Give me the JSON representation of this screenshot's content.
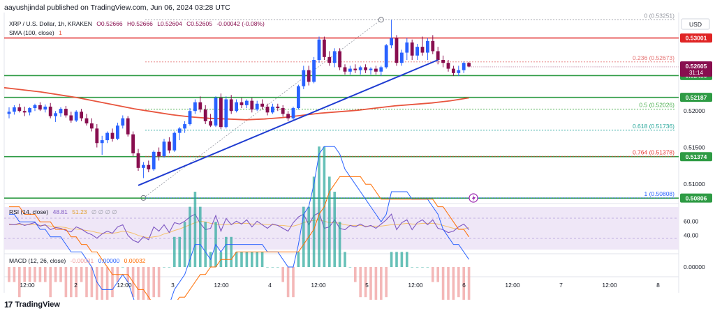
{
  "header": {
    "publisher": "aayushjindal published on TradingView.com, Jun 06, 2024 03:28 UTC"
  },
  "legend": {
    "symbol": "XRP / U.S. Dollar, 1h, KRAKEN",
    "o": "O0.52666",
    "h": "H0.52666",
    "l": "L0.52604",
    "c": "C0.52605",
    "chg": "-0.00042 (-0.08%)",
    "sma_label": "SMA (100, close)",
    "sma_val": "1",
    "rsi_label": "RSI (14, close)",
    "rsi_val": "48.81",
    "rsi_ma": "51.23",
    "rsi_na": "∅ ∅ ∅ ∅",
    "macd_label": "MACD (12, 26, close)",
    "macd_hist": "-0.00031",
    "macd_line": "0.00000",
    "macd_signal": "0.00032"
  },
  "currency": "USD",
  "footer": {
    "logo_text": "TradingView",
    "logo_mark": "17"
  },
  "colors": {
    "up": "#2962ff",
    "down": "#880e4f",
    "sma": "#e8553e",
    "support": "#2e9b44",
    "resistance": "#e02424",
    "trend": "#1e3bd1",
    "rsi": "#7e57c2",
    "rsi_band": "#efe7f7",
    "rsi_ma": "#f5c16c",
    "macd": "#2962ff",
    "signal": "#ff6d00",
    "price_badge": "#880e4f"
  },
  "time_axis": {
    "labels": [
      "12:00",
      "2",
      "12:00",
      "3",
      "12:00",
      "4",
      "12:00",
      "5",
      "12:00",
      "6",
      "12:00",
      "7",
      "12:00",
      "8"
    ]
  },
  "chart_data": {
    "type": "candlestick",
    "title": "XRP / U.S. Dollar, 1h, KRAKEN",
    "ylim": [
      0.5075,
      0.5335
    ],
    "price_ticks": [
      0.51,
      0.515,
      0.52
    ],
    "current_price": {
      "label": "0.52605",
      "countdown": "31:14",
      "value": 0.52605
    },
    "levels": [
      {
        "value": 0.53001,
        "label": "0.53001",
        "kind": "resistance"
      },
      {
        "value": 0.52486,
        "label": "0.52486",
        "kind": "support"
      },
      {
        "value": 0.52187,
        "label": "0.52187",
        "kind": "support"
      },
      {
        "value": 0.51374,
        "label": "0.51374",
        "kind": "support"
      },
      {
        "value": 0.50806,
        "label": "0.50806",
        "kind": "support"
      }
    ],
    "fib_levels": [
      {
        "ratio": "0",
        "value": 0.53251,
        "label": "0 (0.53251)"
      },
      {
        "ratio": "0.236",
        "value": 0.52673,
        "label": "0.236 (0.52673)"
      },
      {
        "ratio": "0.5",
        "value": 0.52026,
        "label": "0.5 (0.52026)"
      },
      {
        "ratio": "0.618",
        "value": 0.51736,
        "label": "0.618 (0.51736)"
      },
      {
        "ratio": "0.764",
        "value": 0.51378,
        "label": "0.764 (0.51378)"
      },
      {
        "ratio": "1",
        "value": 0.50808,
        "label": "1 (0.50808)"
      }
    ],
    "candles": [
      [
        0.5196,
        0.5205,
        0.519,
        0.5199
      ],
      [
        0.5199,
        0.5208,
        0.5195,
        0.5205
      ],
      [
        0.5205,
        0.521,
        0.5198,
        0.52
      ],
      [
        0.52,
        0.5206,
        0.5193,
        0.5198
      ],
      [
        0.5198,
        0.5205,
        0.5194,
        0.5204
      ],
      [
        0.5204,
        0.521,
        0.52,
        0.5208
      ],
      [
        0.5208,
        0.5212,
        0.52,
        0.5202
      ],
      [
        0.5202,
        0.5209,
        0.5198,
        0.5206
      ],
      [
        0.5206,
        0.5211,
        0.519,
        0.5193
      ],
      [
        0.5193,
        0.52,
        0.5185,
        0.5197
      ],
      [
        0.5197,
        0.5205,
        0.5192,
        0.5203
      ],
      [
        0.5203,
        0.5207,
        0.5191,
        0.5194
      ],
      [
        0.5194,
        0.5199,
        0.5184,
        0.5187
      ],
      [
        0.5187,
        0.5201,
        0.5185,
        0.5199
      ],
      [
        0.5199,
        0.5203,
        0.5186,
        0.519
      ],
      [
        0.519,
        0.5196,
        0.518,
        0.5183
      ],
      [
        0.5183,
        0.519,
        0.5172,
        0.5176
      ],
      [
        0.5176,
        0.5182,
        0.515,
        0.5156
      ],
      [
        0.5156,
        0.5166,
        0.514,
        0.516
      ],
      [
        0.516,
        0.5172,
        0.5156,
        0.517
      ],
      [
        0.517,
        0.5176,
        0.5158,
        0.5162
      ],
      [
        0.5162,
        0.5184,
        0.516,
        0.518
      ],
      [
        0.518,
        0.5194,
        0.5176,
        0.519
      ],
      [
        0.519,
        0.5193,
        0.5165,
        0.5168
      ],
      [
        0.5168,
        0.5172,
        0.5138,
        0.5142
      ],
      [
        0.5142,
        0.5148,
        0.5118,
        0.5122
      ],
      [
        0.5122,
        0.513,
        0.5108,
        0.5126
      ],
      [
        0.5126,
        0.5132,
        0.5116,
        0.512
      ],
      [
        0.512,
        0.5146,
        0.5118,
        0.5144
      ],
      [
        0.5144,
        0.515,
        0.5132,
        0.5138
      ],
      [
        0.5138,
        0.5162,
        0.5136,
        0.5158
      ],
      [
        0.5158,
        0.5164,
        0.5142,
        0.5146
      ],
      [
        0.5146,
        0.5172,
        0.5144,
        0.517
      ],
      [
        0.517,
        0.5178,
        0.516,
        0.5176
      ],
      [
        0.5176,
        0.5186,
        0.517,
        0.5182
      ],
      [
        0.5182,
        0.5204,
        0.518,
        0.52
      ],
      [
        0.52,
        0.5216,
        0.5196,
        0.5212
      ],
      [
        0.5212,
        0.522,
        0.5198,
        0.5202
      ],
      [
        0.5202,
        0.5208,
        0.5182,
        0.5186
      ],
      [
        0.5186,
        0.5196,
        0.5178,
        0.518
      ],
      [
        0.518,
        0.522,
        0.5178,
        0.5218
      ],
      [
        0.5218,
        0.5224,
        0.5175,
        0.5178
      ],
      [
        0.5178,
        0.522,
        0.5176,
        0.5216
      ],
      [
        0.5216,
        0.5222,
        0.5196,
        0.52
      ],
      [
        0.52,
        0.5216,
        0.5198,
        0.5212
      ],
      [
        0.5212,
        0.5218,
        0.5204,
        0.5208
      ],
      [
        0.5208,
        0.5216,
        0.5204,
        0.5214
      ],
      [
        0.5214,
        0.5218,
        0.5198,
        0.5202
      ],
      [
        0.5202,
        0.5214,
        0.52,
        0.521
      ],
      [
        0.521,
        0.5216,
        0.5202,
        0.5206
      ],
      [
        0.5206,
        0.521,
        0.5194,
        0.5198
      ],
      [
        0.5198,
        0.521,
        0.5196,
        0.5206
      ],
      [
        0.5206,
        0.521,
        0.52,
        0.5204
      ],
      [
        0.5204,
        0.5208,
        0.5192,
        0.5196
      ],
      [
        0.5196,
        0.52,
        0.5186,
        0.519
      ],
      [
        0.519,
        0.5206,
        0.5188,
        0.5204
      ],
      [
        0.5204,
        0.5236,
        0.5202,
        0.5234
      ],
      [
        0.5234,
        0.5262,
        0.523,
        0.5256
      ],
      [
        0.5256,
        0.5262,
        0.5235,
        0.524
      ],
      [
        0.524,
        0.5274,
        0.5238,
        0.527
      ],
      [
        0.527,
        0.5302,
        0.5266,
        0.5298
      ],
      [
        0.5298,
        0.5302,
        0.527,
        0.5274
      ],
      [
        0.5274,
        0.5282,
        0.5262,
        0.5266
      ],
      [
        0.5266,
        0.5286,
        0.526,
        0.5282
      ],
      [
        0.5282,
        0.5286,
        0.5256,
        0.526
      ],
      [
        0.526,
        0.5264,
        0.525,
        0.5254
      ],
      [
        0.5254,
        0.5262,
        0.525,
        0.5258
      ],
      [
        0.5258,
        0.5264,
        0.5252,
        0.5256
      ],
      [
        0.5256,
        0.5262,
        0.525,
        0.526
      ],
      [
        0.526,
        0.5264,
        0.5252,
        0.5256
      ],
      [
        0.5256,
        0.526,
        0.525,
        0.5258
      ],
      [
        0.5258,
        0.5262,
        0.525,
        0.5254
      ],
      [
        0.5254,
        0.5262,
        0.5248,
        0.526
      ],
      [
        0.526,
        0.5292,
        0.5258,
        0.529
      ],
      [
        0.529,
        0.5325,
        0.5286,
        0.53
      ],
      [
        0.53,
        0.5304,
        0.5262,
        0.5266
      ],
      [
        0.5266,
        0.5284,
        0.5262,
        0.528
      ],
      [
        0.528,
        0.53,
        0.527,
        0.5294
      ],
      [
        0.5294,
        0.5298,
        0.527,
        0.5276
      ],
      [
        0.5276,
        0.5292,
        0.527,
        0.5288
      ],
      [
        0.5288,
        0.5302,
        0.5276,
        0.528
      ],
      [
        0.528,
        0.53,
        0.527,
        0.5296
      ],
      [
        0.5296,
        0.5304,
        0.5278,
        0.5282
      ],
      [
        0.5282,
        0.5288,
        0.5264,
        0.527
      ],
      [
        0.527,
        0.5276,
        0.526,
        0.5266
      ],
      [
        0.5266,
        0.527,
        0.5254,
        0.5258
      ],
      [
        0.5258,
        0.5262,
        0.5248,
        0.5252
      ],
      [
        0.5252,
        0.5262,
        0.5248,
        0.5256
      ],
      [
        0.5256,
        0.5268,
        0.5252,
        0.5266
      ],
      [
        0.5266,
        0.5267,
        0.526,
        0.5261
      ]
    ],
    "sma": [
      0.5232,
      0.5229,
      0.5226,
      0.5222,
      0.5218,
      0.5213,
      0.5208,
      0.5203,
      0.5199,
      0.5195,
      0.5192,
      0.519,
      0.5189,
      0.5188,
      0.5189,
      0.5191,
      0.5194,
      0.5197,
      0.5199,
      0.5201,
      0.5204,
      0.5207,
      0.5209,
      0.5211,
      0.5214,
      0.5218
    ],
    "rsi_ticks": [
      40,
      60
    ],
    "rsi": [
      56,
      55,
      57,
      54,
      56,
      58,
      53,
      55,
      48,
      51,
      50,
      47,
      45,
      52,
      49,
      44,
      41,
      36,
      42,
      46,
      43,
      52,
      55,
      40,
      33,
      30,
      38,
      34,
      52,
      46,
      55,
      44,
      58,
      56,
      60,
      66,
      70,
      57,
      48,
      50,
      68,
      46,
      64,
      55,
      60,
      56,
      62,
      52,
      60,
      55,
      50,
      56,
      54,
      50,
      46,
      58,
      66,
      70,
      55,
      68,
      72,
      50,
      52,
      62,
      50,
      48,
      54,
      52,
      56,
      52,
      54,
      50,
      56,
      62,
      70,
      48,
      58,
      62,
      48,
      58,
      62,
      55,
      62,
      50,
      48,
      44,
      46,
      52,
      56,
      48
    ],
    "rsi_ma": [
      55,
      55,
      55,
      55,
      55,
      55,
      54,
      54,
      53,
      52,
      52,
      51,
      49,
      49,
      48,
      47,
      46,
      44,
      43,
      43,
      43,
      44,
      46,
      45,
      43,
      40,
      38,
      37,
      38,
      39,
      42,
      44,
      47,
      49,
      52,
      55,
      58,
      60,
      59,
      57,
      56,
      55,
      55,
      56,
      57,
      57,
      57,
      56,
      56,
      56,
      55,
      55,
      54,
      54,
      53,
      53,
      55,
      58,
      60,
      61,
      62,
      60,
      58,
      58,
      57,
      55,
      54,
      54,
      54,
      53,
      53,
      53,
      53,
      54,
      55,
      55,
      56,
      57,
      56,
      56,
      57,
      57,
      57,
      56,
      54,
      52,
      50,
      49,
      49,
      51
    ],
    "macd_ticks": [
      0.0
    ],
    "macd": [
      0.0007,
      0.0007,
      0.0006,
      0.0006,
      0.0006,
      0.0006,
      0.0005,
      0.0005,
      0.0004,
      0.0004,
      0.0004,
      0.0003,
      0.0002,
      0.0002,
      0.0002,
      0.0001,
      0.0,
      -0.0002,
      -0.0003,
      -0.0003,
      -0.0003,
      -0.0002,
      -0.0001,
      -0.0002,
      -0.0004,
      -0.0006,
      -0.0007,
      -0.0008,
      -0.0007,
      -0.0007,
      -0.0005,
      -0.0005,
      -0.0003,
      -0.0002,
      -0.0001,
      0.0001,
      0.0003,
      0.0003,
      0.0002,
      0.0001,
      0.0003,
      0.0002,
      0.0003,
      0.0003,
      0.0003,
      0.0003,
      0.0003,
      0.0003,
      0.0003,
      0.0003,
      0.0002,
      0.0002,
      0.0002,
      0.0001,
      0.0,
      0.0,
      0.0003,
      0.0007,
      0.0008,
      0.0011,
      0.0015,
      0.0016,
      0.0016,
      0.0016,
      0.0015,
      0.0013,
      0.0012,
      0.0011,
      0.001,
      0.0009,
      0.0008,
      0.0007,
      0.0006,
      0.0007,
      0.001,
      0.001,
      0.001,
      0.001,
      0.0009,
      0.0009,
      0.0009,
      0.0009,
      0.0008,
      0.0007,
      0.0005,
      0.0004,
      0.0003,
      0.0003,
      0.0002,
      0.0001
    ],
    "macd_signal": [
      0.0008,
      0.0008,
      0.0008,
      0.0007,
      0.0007,
      0.0007,
      0.0006,
      0.0006,
      0.0006,
      0.0005,
      0.0005,
      0.0005,
      0.0004,
      0.0004,
      0.0003,
      0.0003,
      0.0002,
      0.0002,
      0.0001,
      0.0,
      -0.0001,
      -0.0001,
      -0.0001,
      -0.0001,
      -0.0002,
      -0.0003,
      -0.0003,
      -0.0004,
      -0.0005,
      -0.0005,
      -0.0005,
      -0.0005,
      -0.0005,
      -0.0004,
      -0.0004,
      -0.0003,
      -0.0002,
      -0.0001,
      -0.0001,
      0.0,
      0.0,
      0.0001,
      0.0001,
      0.0001,
      0.0002,
      0.0002,
      0.0002,
      0.0002,
      0.0002,
      0.0002,
      0.0002,
      0.0002,
      0.0002,
      0.0002,
      0.0002,
      0.0002,
      0.0002,
      0.0003,
      0.0004,
      0.0005,
      0.0007,
      0.0008,
      0.001,
      0.0011,
      0.0012,
      0.0012,
      0.0012,
      0.0012,
      0.0012,
      0.0011,
      0.0011,
      0.001,
      0.0009,
      0.0009,
      0.0009,
      0.0009,
      0.0009,
      0.0009,
      0.0009,
      0.0009,
      0.0009,
      0.0009,
      0.0009,
      0.0008,
      0.0008,
      0.0007,
      0.0006,
      0.0005,
      0.0005,
      0.0004
    ],
    "trendline": {
      "from": {
        "candle": 25,
        "value": 0.5098
      },
      "to": {
        "candle": 83,
        "value": 0.527
      }
    },
    "fib_anchor": {
      "from": {
        "candle": 26,
        "value": 0.50808
      },
      "to": {
        "candle": 72,
        "value": 0.53251
      }
    }
  }
}
